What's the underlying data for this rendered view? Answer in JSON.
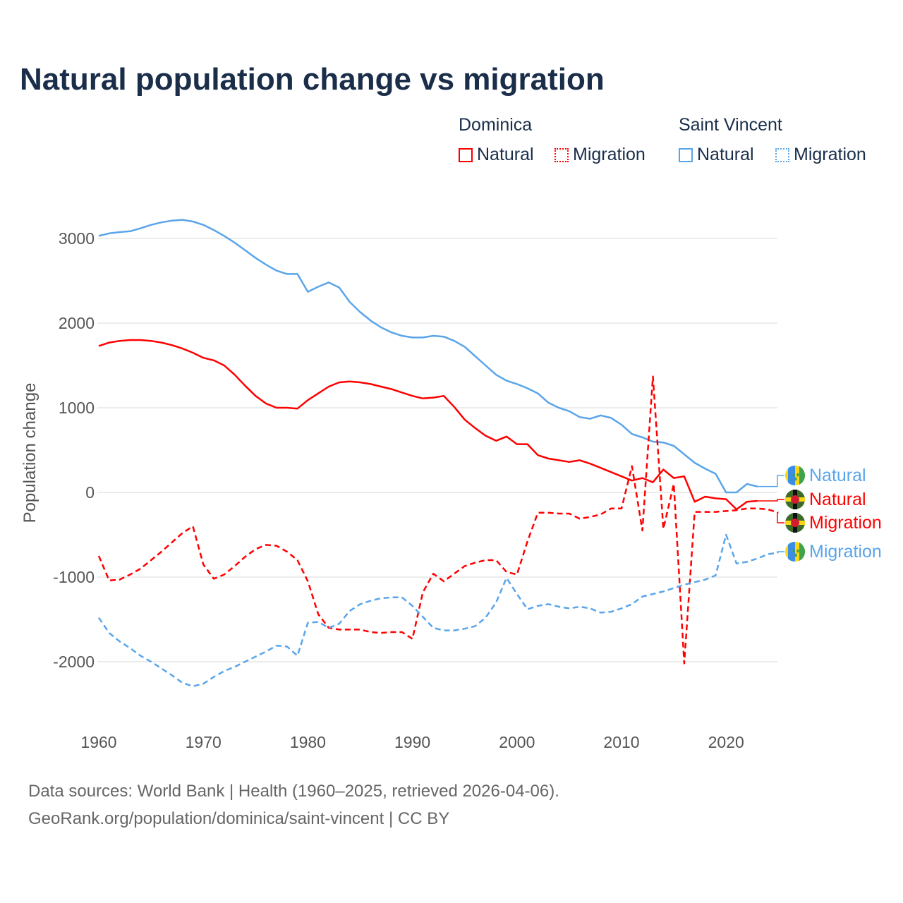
{
  "chart_data": {
    "type": "line",
    "title": "Natural population change vs migration",
    "xlabel": "",
    "ylabel": "Population change",
    "xlim": [
      1960,
      2025
    ],
    "ylim": [
      -2600,
      3300
    ],
    "x_ticks": [
      1960,
      1970,
      1980,
      1990,
      2000,
      2010,
      2020
    ],
    "y_ticks": [
      -2000,
      -1000,
      0,
      1000,
      2000,
      3000
    ],
    "grid": true,
    "legend": {
      "placement": "top-right",
      "groups": [
        {
          "name": "Dominica",
          "items": [
            "Natural",
            "Migration"
          ]
        },
        {
          "name": "Saint Vincent",
          "items": [
            "Natural",
            "Migration"
          ]
        }
      ]
    },
    "series": [
      {
        "name": "Saint Vincent Natural",
        "label": "Natural",
        "country": "Saint Vincent",
        "color": "#5aa5ea",
        "dash": false,
        "start": 1960,
        "values": [
          3030,
          3060,
          3075,
          3085,
          3120,
          3160,
          3190,
          3210,
          3220,
          3200,
          3160,
          3100,
          3030,
          2950,
          2860,
          2770,
          2690,
          2620,
          2580,
          2580,
          2370,
          2430,
          2480,
          2420,
          2250,
          2130,
          2030,
          1950,
          1890,
          1850,
          1830,
          1830,
          1850,
          1840,
          1790,
          1720,
          1610,
          1500,
          1390,
          1320,
          1280,
          1230,
          1170,
          1060,
          1000,
          960,
          890,
          870,
          910,
          880,
          800,
          690,
          650,
          600,
          590,
          550,
          450,
          350,
          280,
          220,
          0,
          0,
          100,
          70
        ]
      },
      {
        "name": "Dominica Natural",
        "label": "Natural",
        "country": "Dominica",
        "color": "#ff0000",
        "dash": false,
        "start": 1960,
        "values": [
          1730,
          1770,
          1790,
          1800,
          1800,
          1790,
          1770,
          1740,
          1700,
          1650,
          1590,
          1560,
          1500,
          1390,
          1260,
          1140,
          1050,
          1000,
          1000,
          990,
          1090,
          1170,
          1250,
          1300,
          1310,
          1300,
          1280,
          1250,
          1220,
          1180,
          1140,
          1110,
          1120,
          1140,
          1010,
          860,
          760,
          670,
          610,
          660,
          570,
          570,
          440,
          400,
          380,
          360,
          380,
          340,
          290,
          240,
          190,
          140,
          170,
          120,
          270,
          170,
          190,
          -110,
          -50,
          -70,
          -80,
          -200,
          -110,
          -100
        ]
      },
      {
        "name": "Dominica Migration",
        "label": "Migration",
        "country": "Dominica",
        "color": "#ff0000",
        "dash": true,
        "start": 1960,
        "values": [
          -750,
          -1040,
          -1030,
          -970,
          -900,
          -800,
          -700,
          -590,
          -480,
          -400,
          -850,
          -1020,
          -970,
          -870,
          -760,
          -670,
          -620,
          -630,
          -700,
          -800,
          -1050,
          -1440,
          -1600,
          -1620,
          -1620,
          -1620,
          -1650,
          -1660,
          -1650,
          -1650,
          -1730,
          -1180,
          -960,
          -1050,
          -960,
          -870,
          -830,
          -800,
          -800,
          -940,
          -970,
          -580,
          -240,
          -240,
          -250,
          -250,
          -310,
          -290,
          -260,
          -190,
          -190,
          310,
          -450,
          1370,
          -430,
          100,
          -2020,
          -230,
          -230,
          -230,
          -220,
          -210,
          -190,
          -190,
          -200,
          -240
        ]
      },
      {
        "name": "Saint Vincent Migration",
        "label": "Migration",
        "country": "Saint Vincent",
        "color": "#5aa5ea",
        "dash": true,
        "start": 1960,
        "values": [
          -1480,
          -1660,
          -1760,
          -1840,
          -1930,
          -2000,
          -2080,
          -2160,
          -2250,
          -2290,
          -2260,
          -2180,
          -2110,
          -2060,
          -2000,
          -1940,
          -1880,
          -1810,
          -1820,
          -1930,
          -1540,
          -1530,
          -1600,
          -1550,
          -1400,
          -1320,
          -1280,
          -1250,
          -1240,
          -1240,
          -1340,
          -1470,
          -1600,
          -1630,
          -1630,
          -1610,
          -1580,
          -1480,
          -1300,
          -1010,
          -1200,
          -1380,
          -1340,
          -1320,
          -1350,
          -1370,
          -1350,
          -1370,
          -1420,
          -1410,
          -1370,
          -1320,
          -1230,
          -1200,
          -1170,
          -1130,
          -1090,
          -1060,
          -1030,
          -980,
          -500,
          -840,
          -820,
          -780,
          -730,
          -710
        ]
      }
    ],
    "end_labels": [
      {
        "text": "Natural",
        "series": 0,
        "flag": "saint-vincent-flag-icon"
      },
      {
        "text": "Natural",
        "series": 1,
        "flag": "dominica-flag-icon"
      },
      {
        "text": "Migration",
        "series": 2,
        "flag": "dominica-flag-icon"
      },
      {
        "text": "Migration",
        "series": 3,
        "flag": "saint-vincent-flag-icon"
      }
    ]
  },
  "legend": {
    "dominica": "Dominica",
    "saint_vincent": "Saint Vincent",
    "natural": "Natural",
    "migration": "Migration"
  },
  "source": {
    "line1": "Data sources: World Bank | Health (1960–2025, retrieved 2026-04-06).",
    "line2": "GeoRank.org/population/dominica/saint-vincent | CC BY"
  }
}
